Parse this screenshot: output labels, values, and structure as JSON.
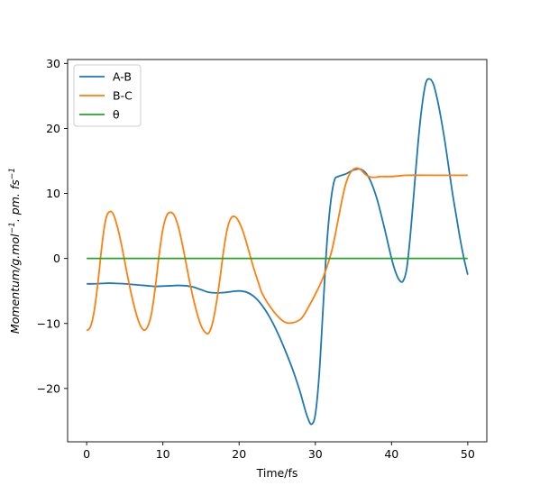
{
  "chart_data": {
    "type": "line",
    "title": "",
    "xlabel": "Time/fs",
    "ylabel_parts": [
      {
        "t": "Momentum/g.mol"
      },
      {
        "t": "−1",
        "sup": true
      },
      {
        "t": ". pm. fs"
      },
      {
        "t": "−1",
        "sup": true
      }
    ],
    "xlim": [
      -2.5,
      52.5
    ],
    "ylim": [
      -28.2,
      30.6
    ],
    "xticks": [
      0,
      10,
      20,
      30,
      40,
      50
    ],
    "xtick_labels": [
      "0",
      "10",
      "20",
      "30",
      "40",
      "50"
    ],
    "yticks": [
      -20,
      -10,
      0,
      10,
      20,
      30
    ],
    "ytick_labels": [
      "−20",
      "−10",
      "0",
      "10",
      "20",
      "30"
    ],
    "grid": false,
    "legend_position": "top-left",
    "series": [
      {
        "name": "A-B",
        "color": "#1f77b4",
        "x": [
          0,
          1,
          2,
          3,
          4,
          5,
          6,
          7,
          8,
          9,
          10,
          11,
          12,
          13,
          14,
          15,
          16,
          17,
          18,
          19,
          20,
          21,
          22,
          23,
          24,
          25,
          26,
          27,
          28,
          28.5,
          29,
          29.5,
          30,
          30.5,
          31,
          31.5,
          32,
          32.5,
          33,
          34,
          35,
          36,
          37,
          38,
          39,
          40,
          40.5,
          41,
          41.5,
          42,
          42.5,
          43,
          43.5,
          44,
          44.5,
          45,
          45.5,
          46,
          46.5,
          47,
          47.5,
          48,
          48.5,
          49,
          49.5,
          50
        ],
        "y": [
          -3.9,
          -3.9,
          -3.85,
          -3.8,
          -3.85,
          -3.9,
          -4.0,
          -4.1,
          -4.2,
          -4.3,
          -4.25,
          -4.2,
          -4.15,
          -4.2,
          -4.4,
          -4.8,
          -5.2,
          -5.3,
          -5.25,
          -5.1,
          -5.0,
          -5.2,
          -5.9,
          -7.2,
          -9.0,
          -11.3,
          -14.0,
          -17.0,
          -20.5,
          -22.6,
          -24.5,
          -25.5,
          -24.0,
          -18.0,
          -8.0,
          2.0,
          8.5,
          12.0,
          12.6,
          13.0,
          13.6,
          13.7,
          12.5,
          9.5,
          5.0,
          0.0,
          -2.0,
          -3.3,
          -3.5,
          -1.5,
          4.0,
          11.0,
          18.0,
          23.5,
          27.0,
          27.6,
          26.8,
          24.5,
          21.5,
          18.0,
          14.0,
          10.0,
          6.5,
          3.0,
          0.0,
          -2.5
        ]
      },
      {
        "name": "B-C",
        "color": "#ff7f0e",
        "x": [
          0,
          0.5,
          1,
          1.5,
          2,
          2.5,
          3,
          3.5,
          4,
          4.5,
          5,
          5.5,
          6,
          6.5,
          7,
          7.5,
          8,
          8.5,
          9,
          9.5,
          10,
          10.5,
          11,
          11.5,
          12,
          12.5,
          13,
          13.5,
          14,
          14.5,
          15,
          15.5,
          16,
          16.5,
          17,
          17.5,
          18,
          18.5,
          19,
          19.5,
          20,
          20.5,
          21,
          21.5,
          22,
          22.5,
          23,
          24,
          25,
          26,
          27,
          28,
          28.5,
          29,
          30,
          31,
          32,
          32.5,
          33,
          33.5,
          34,
          34.5,
          35,
          35.5,
          36,
          36.5,
          37,
          37.5,
          38,
          38.5,
          39,
          40,
          41,
          42,
          45,
          50
        ],
        "y": [
          -11.1,
          -10.5,
          -8.0,
          -3.5,
          2.0,
          6.0,
          7.2,
          6.8,
          5.0,
          2.5,
          -0.5,
          -3.5,
          -6.2,
          -8.5,
          -10.2,
          -11.0,
          -10.5,
          -8.5,
          -4.5,
          0.5,
          4.5,
          6.6,
          7.1,
          6.6,
          5.0,
          2.5,
          -0.5,
          -3.5,
          -6.2,
          -8.5,
          -10.3,
          -11.3,
          -11.5,
          -10.0,
          -7.0,
          -3.0,
          1.5,
          4.8,
          6.3,
          6.4,
          5.6,
          4.2,
          2.3,
          0.2,
          -1.8,
          -3.6,
          -5.3,
          -7.3,
          -8.8,
          -9.8,
          -9.9,
          -9.4,
          -8.7,
          -7.7,
          -5.5,
          -3.0,
          0.5,
          3.0,
          6.0,
          9.0,
          11.5,
          13.0,
          13.7,
          13.9,
          13.6,
          13.0,
          12.6,
          12.5,
          12.5,
          12.6,
          12.6,
          12.6,
          12.7,
          12.8,
          12.8,
          12.8
        ]
      },
      {
        "name": "θ",
        "color": "#2ca02c",
        "x": [
          0,
          50
        ],
        "y": [
          0,
          0
        ]
      }
    ]
  }
}
